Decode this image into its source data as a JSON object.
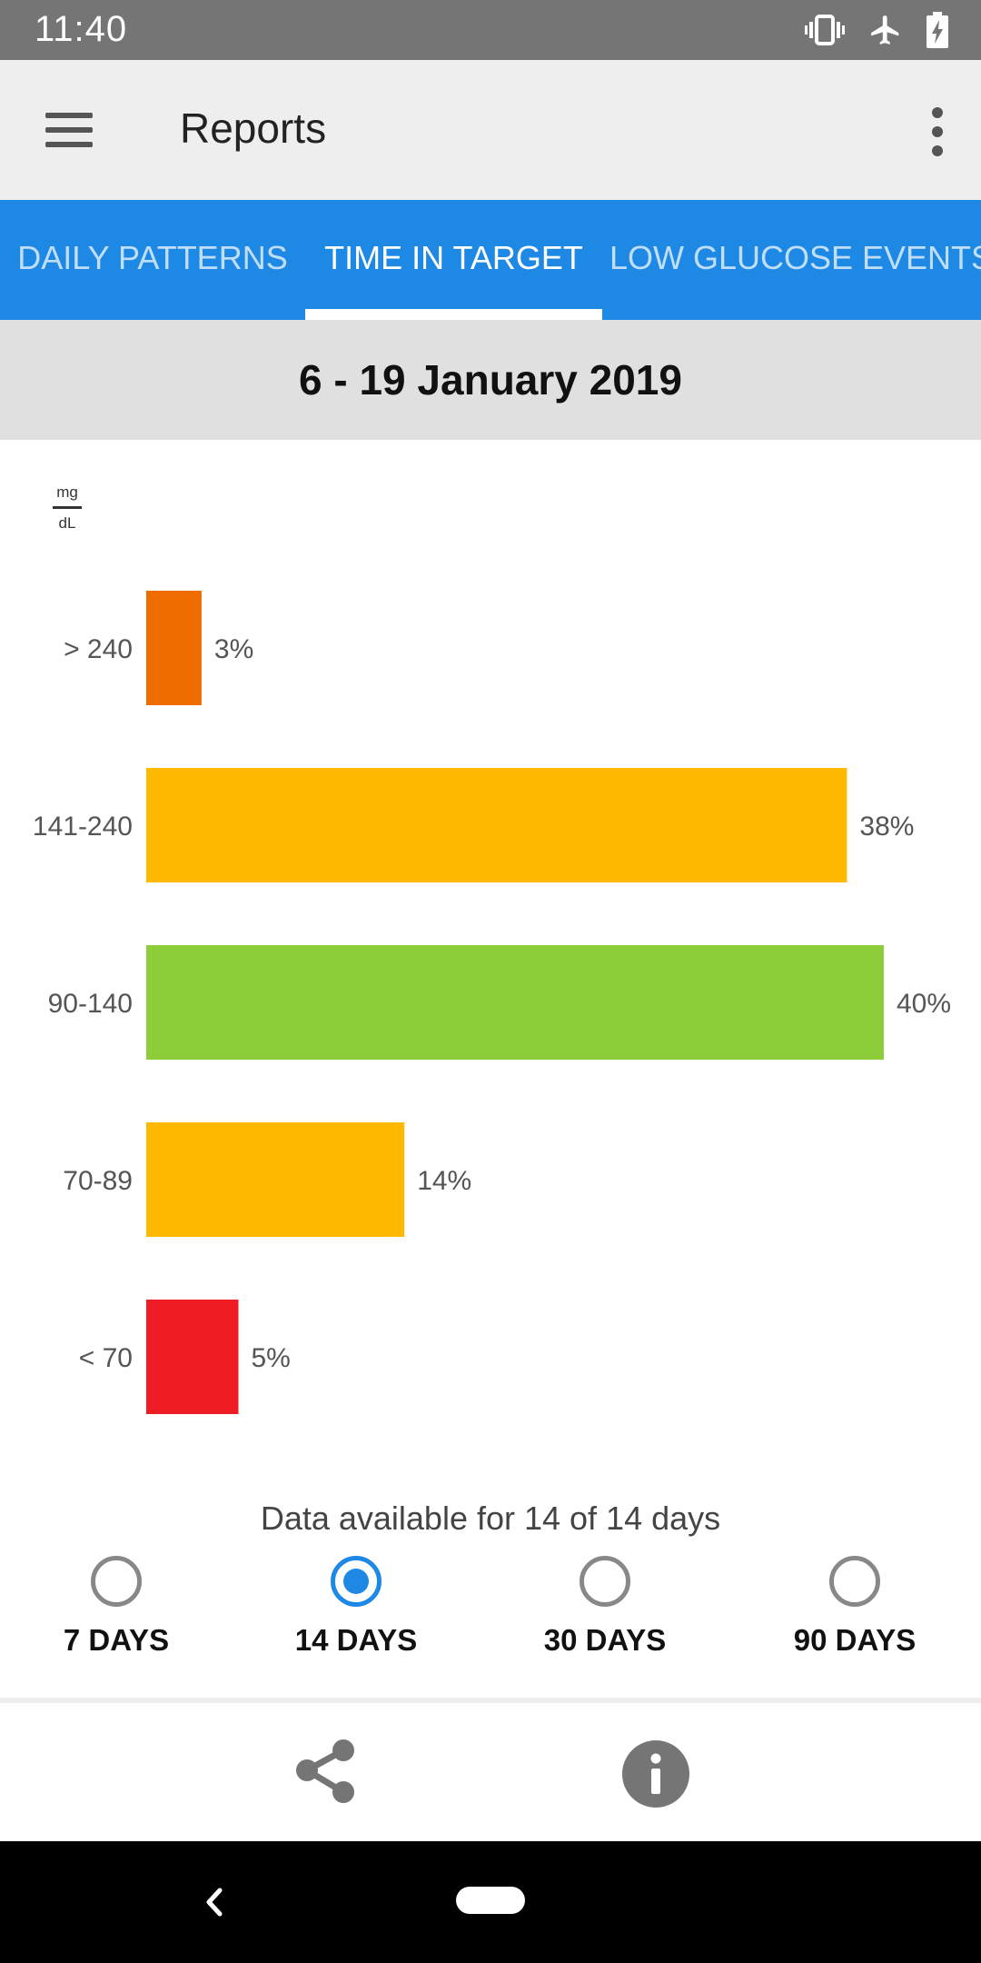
{
  "status_bar": {
    "time": "11:40",
    "icons": [
      "vibrate-icon",
      "airplane-mode-icon",
      "battery-charging-icon"
    ]
  },
  "app_bar": {
    "title": "Reports",
    "menu_icon": "hamburger-menu-icon",
    "overflow_icon": "more-vert-icon"
  },
  "tabs": [
    {
      "label": "DAILY PATTERNS",
      "active": false
    },
    {
      "label": "TIME IN TARGET",
      "active": true
    },
    {
      "label": "LOW GLUCOSE EVENTS",
      "active": false
    }
  ],
  "date_range": "6 - 19 January 2019",
  "chart_data": {
    "type": "bar",
    "orientation": "horizontal",
    "unit_top": "mg",
    "unit_bottom": "dL",
    "categories": [
      "> 240",
      "141-240",
      "90-140",
      "70-89",
      "< 70"
    ],
    "values": [
      3,
      38,
      40,
      14,
      5
    ],
    "value_labels": [
      "3%",
      "38%",
      "40%",
      "14%",
      "5%"
    ],
    "colors": [
      "#ef6c00",
      "#ffb900",
      "#8dcd3a",
      "#ffb900",
      "#ee1c25"
    ],
    "xlim": [
      0,
      100
    ],
    "grid": false
  },
  "availability": "Data available for 14 of 14 days",
  "periods": [
    {
      "label": "7 DAYS",
      "selected": false
    },
    {
      "label": "14 DAYS",
      "selected": true
    },
    {
      "label": "30 DAYS",
      "selected": false
    },
    {
      "label": "90 DAYS",
      "selected": false
    }
  ],
  "actions": {
    "share_icon": "share-icon",
    "info_icon": "info-icon"
  },
  "nav_bar": {
    "back_icon": "back-icon",
    "home_icon": "home-pill-icon"
  }
}
